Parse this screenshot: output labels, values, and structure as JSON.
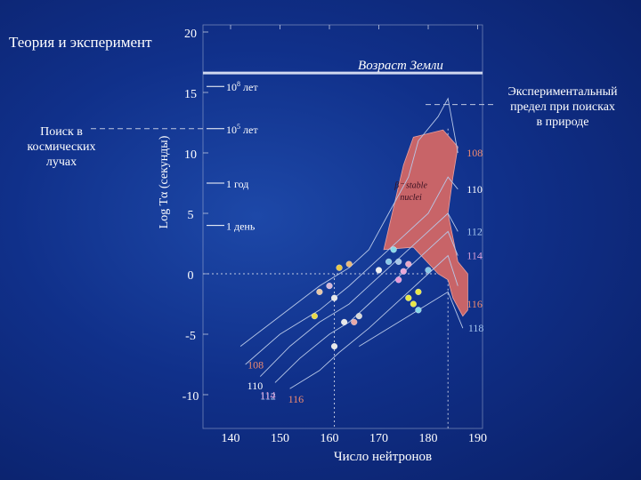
{
  "slide": {
    "title": "Теория и эксперимент",
    "left_note_lines": [
      "Поиск в",
      "космических",
      "лучах"
    ],
    "right_note_lines": [
      "Экспериментальный",
      "предел при поисках",
      "в природе"
    ]
  },
  "chart_data": {
    "type": "line",
    "title": "Теория и эксперимент",
    "xlabel": "Число нейтронов",
    "ylabel": "Log Tα (секунды)",
    "xlim": [
      135,
      190
    ],
    "ylim": [
      -12,
      20
    ],
    "x_ticks": [
      "140",
      "150",
      "160",
      "170",
      "180",
      "190"
    ],
    "y_ticks": [
      "20",
      "15",
      "10",
      "5",
      "0",
      "-5",
      "-10"
    ],
    "earth_age": {
      "label": "Возраст Земли",
      "log_t": 17.2
    },
    "time_scale": [
      {
        "label": "108 лет",
        "base": "10",
        "exp": "8",
        "unit": " лет",
        "log_t": 15.5
      },
      {
        "label": "105 лет",
        "base": "10",
        "exp": "5",
        "unit": " лет",
        "log_t": 12.0
      },
      {
        "label": "1 год",
        "log_t": 7.5
      },
      {
        "label": "1 день",
        "log_t": 4.0
      }
    ],
    "island_label": [
      "β⁻ stable",
      "nuclei"
    ],
    "series": [
      {
        "name": "108",
        "x": [
          142,
          150,
          158,
          164,
          168,
          172,
          176,
          178,
          182,
          184,
          186
        ],
        "y": [
          -6,
          -3.5,
          -1,
          0.5,
          2,
          5,
          8,
          11,
          13,
          14.5,
          10
        ]
      },
      {
        "name": "110",
        "x": [
          143,
          150,
          158,
          164,
          168,
          172,
          176,
          180,
          184,
          186
        ],
        "y": [
          -7.5,
          -5,
          -3,
          -1,
          0.5,
          2,
          3.5,
          5,
          8,
          7
        ]
      },
      {
        "name": "112",
        "x": [
          146,
          152,
          158,
          164,
          168,
          172,
          176,
          180,
          184,
          186
        ],
        "y": [
          -8.5,
          -6,
          -4,
          -2.5,
          -1,
          0.5,
          2,
          3.5,
          5,
          3.5
        ]
      },
      {
        "name": "114",
        "x": [
          149,
          154,
          160,
          164,
          168,
          172,
          176,
          180,
          184,
          186
        ],
        "y": [
          -9,
          -7,
          -5,
          -4,
          -2.5,
          -1,
          0.5,
          2,
          3.5,
          1.5
        ]
      },
      {
        "name": "116",
        "x": [
          152,
          158,
          162,
          168,
          172,
          176,
          180,
          184,
          186
        ],
        "y": [
          -9.5,
          -8,
          -6.5,
          -4.5,
          -3,
          -1.5,
          0,
          1.5,
          -1
        ]
      },
      {
        "name": "118",
        "x": [
          166,
          170,
          176,
          180,
          184,
          187
        ],
        "y": [
          -6,
          -5,
          -3.5,
          -2.5,
          -1.5,
          -4.5
        ]
      }
    ],
    "experimental_points": [
      {
        "x": 157,
        "y": -3.5,
        "color": "#e8d848"
      },
      {
        "x": 158,
        "y": -1.5,
        "color": "#e8c8a8"
      },
      {
        "x": 160,
        "y": -1.0,
        "color": "#d8b8d8"
      },
      {
        "x": 161,
        "y": -2.0,
        "color": "#e8e8e8"
      },
      {
        "x": 161,
        "y": -6.0,
        "color": "#e8e8e8"
      },
      {
        "x": 163,
        "y": -4.0,
        "color": "#e8e8e8"
      },
      {
        "x": 165,
        "y": -4.0,
        "color": "#e8a8a8"
      },
      {
        "x": 166,
        "y": -3.5,
        "color": "#d8d8d8"
      },
      {
        "x": 162,
        "y": 0.5,
        "color": "#e8c848"
      },
      {
        "x": 164,
        "y": 0.8,
        "color": "#e8b878"
      },
      {
        "x": 170,
        "y": 0.3,
        "color": "#f0f0f0"
      },
      {
        "x": 172,
        "y": 1.0,
        "color": "#88c8e8"
      },
      {
        "x": 173,
        "y": 2.0,
        "color": "#88d8e8"
      },
      {
        "x": 174,
        "y": -0.5,
        "color": "#e898d8"
      },
      {
        "x": 175,
        "y": 0.2,
        "color": "#e8a8d8"
      },
      {
        "x": 176,
        "y": 0.8,
        "color": "#e8a8c8"
      },
      {
        "x": 174,
        "y": 1.0,
        "color": "#a8c8e8"
      },
      {
        "x": 176,
        "y": -2.0,
        "color": "#e8e848"
      },
      {
        "x": 177,
        "y": -2.5,
        "color": "#e8e848"
      },
      {
        "x": 178,
        "y": -1.5,
        "color": "#e8e848"
      },
      {
        "x": 178,
        "y": -3.0,
        "color": "#88d8e8"
      },
      {
        "x": 180,
        "y": 0.3,
        "color": "#88c8e8"
      }
    ]
  },
  "colors": {
    "background": "#10308a",
    "island": "#c86468",
    "curve": "#b8c8e8",
    "label_orange": "#f08a70",
    "label_pink": "#f0a8c0",
    "label_blue": "#a8c8f0",
    "label_purple": "#d8a0d8",
    "dash": "#c0c8e0"
  }
}
